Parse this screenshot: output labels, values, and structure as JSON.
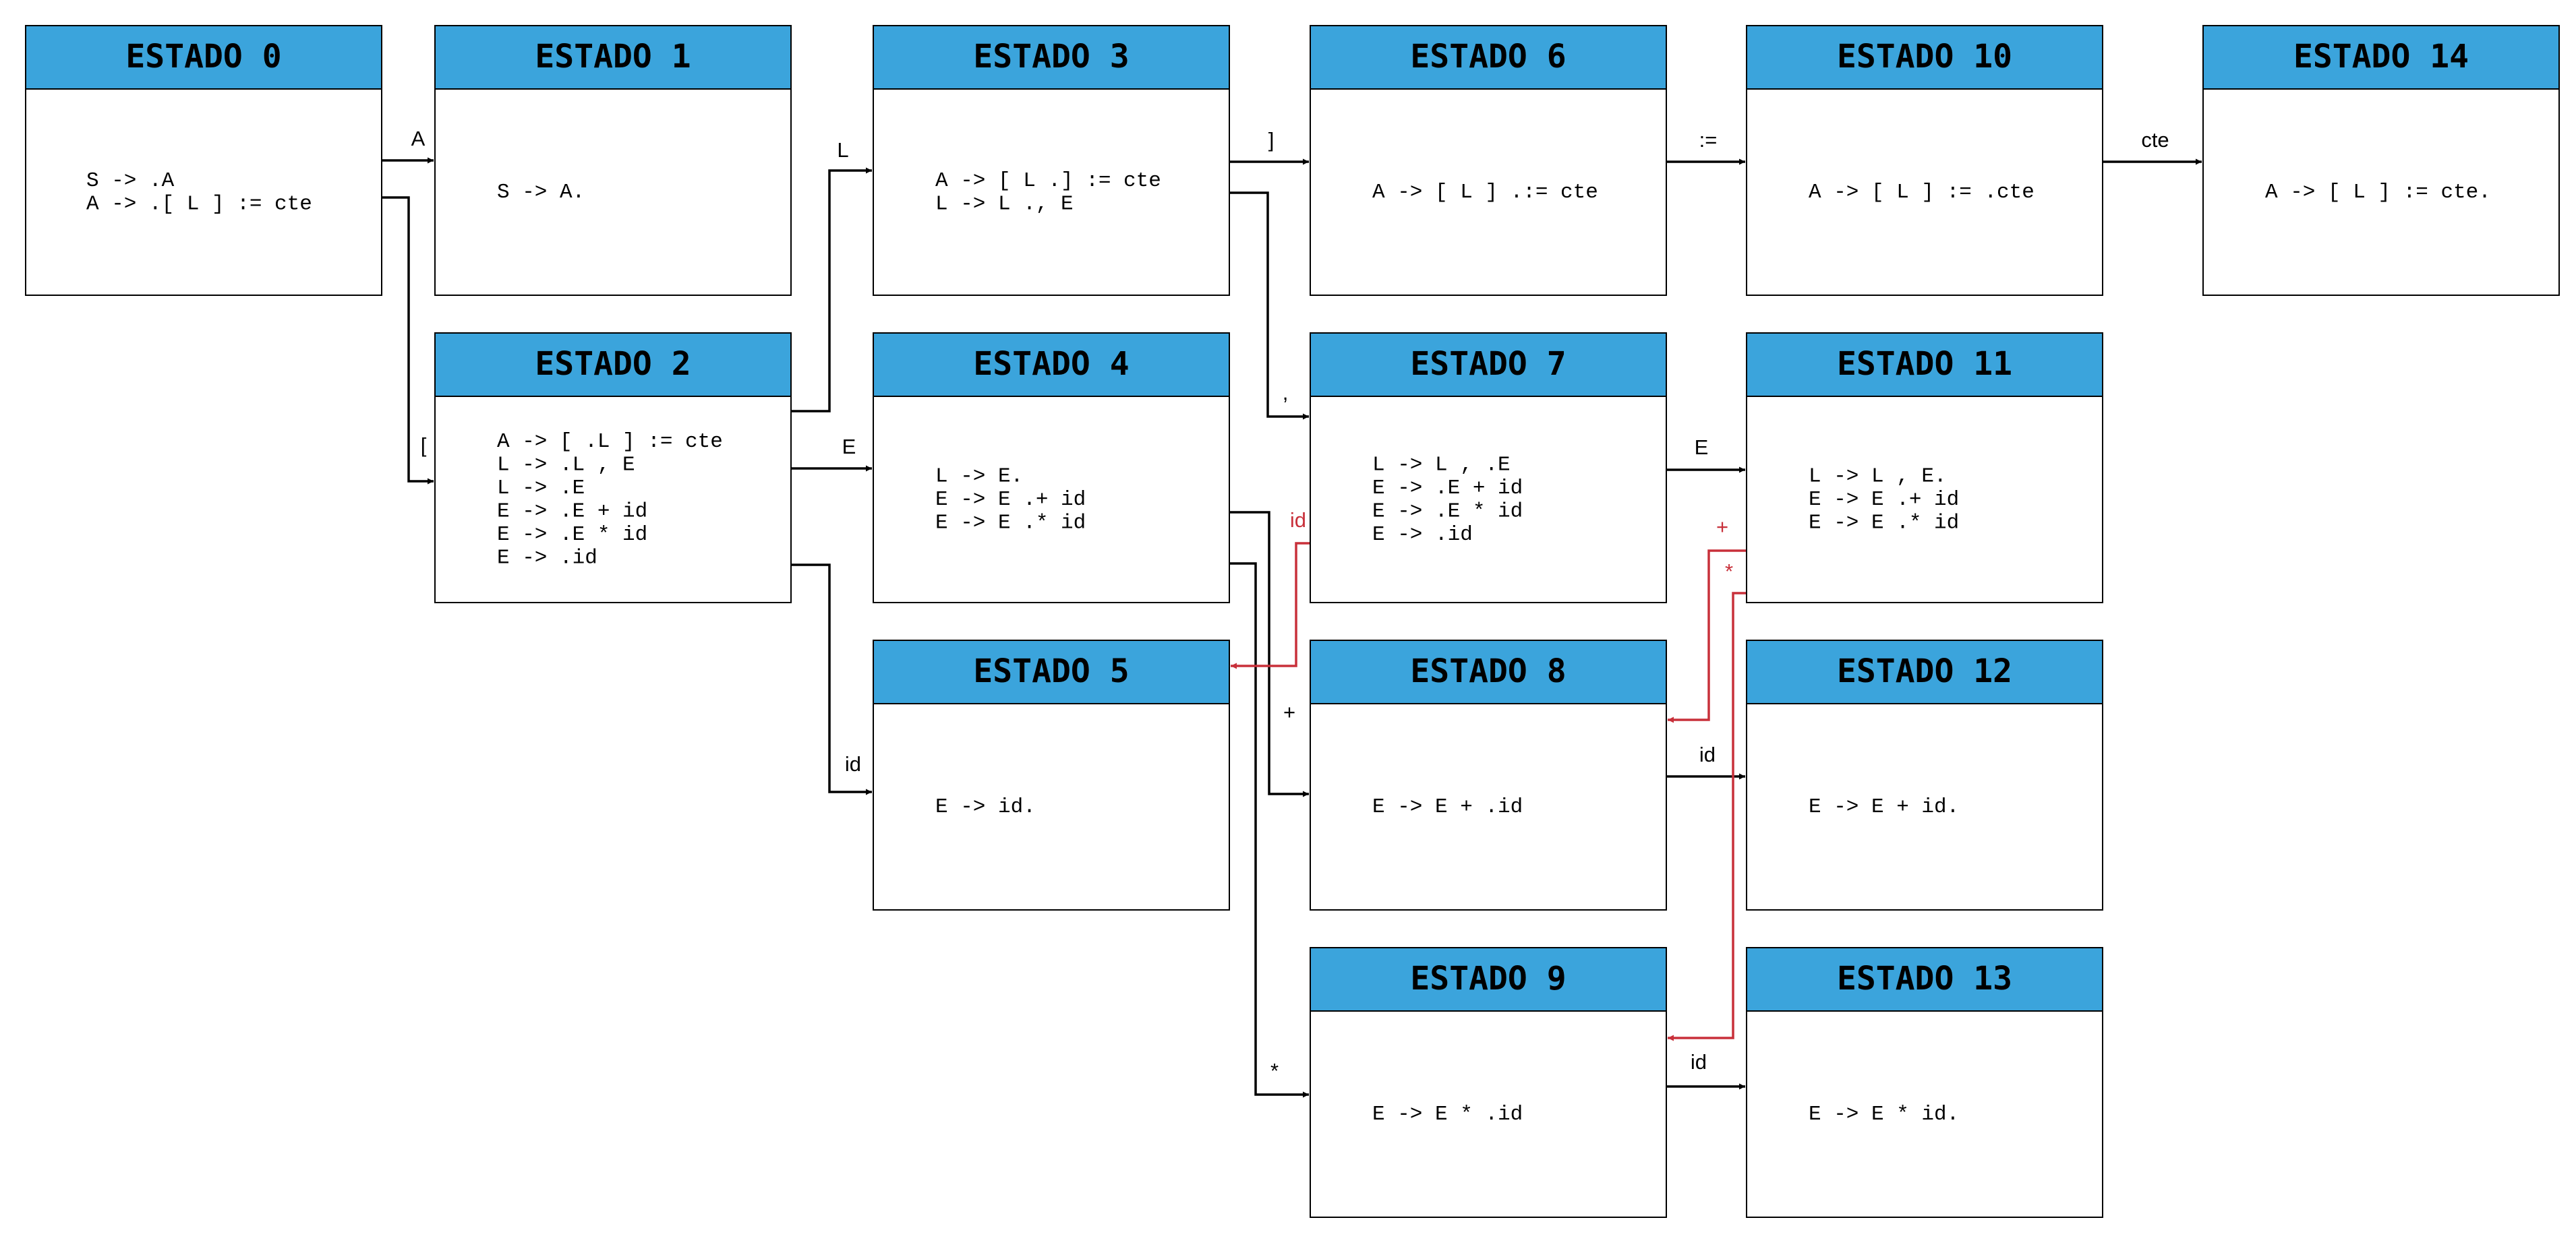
{
  "colors": {
    "header": "#3ba4dc",
    "border": "#000000",
    "edge": "#000000",
    "edge_highlight": "#c8303a"
  },
  "states": [
    {
      "id": "0",
      "title": "ESTADO 0",
      "items": [
        "S -> .A",
        "A -> .[ L ] := cte"
      ]
    },
    {
      "id": "1",
      "title": "ESTADO 1",
      "items": [
        "S -> A."
      ]
    },
    {
      "id": "2",
      "title": "ESTADO 2",
      "items": [
        "A -> [ .L ] := cte",
        "L -> .L , E",
        "L -> .E",
        "E -> .E + id",
        "E -> .E * id",
        "E -> .id"
      ]
    },
    {
      "id": "3",
      "title": "ESTADO 3",
      "items": [
        "A -> [ L .] := cte",
        "L -> L ., E"
      ]
    },
    {
      "id": "4",
      "title": "ESTADO 4",
      "items": [
        "L -> E.",
        "E -> E .+ id",
        "E -> E .* id"
      ]
    },
    {
      "id": "5",
      "title": "ESTADO 5",
      "items": [
        "E -> id."
      ]
    },
    {
      "id": "6",
      "title": "ESTADO 6",
      "items": [
        "A -> [ L ] .:= cte"
      ]
    },
    {
      "id": "7",
      "title": "ESTADO 7",
      "items": [
        "L -> L , .E",
        "E -> .E + id",
        "E -> .E * id",
        "E -> .id"
      ]
    },
    {
      "id": "8",
      "title": "ESTADO 8",
      "items": [
        "E -> E + .id"
      ]
    },
    {
      "id": "9",
      "title": "ESTADO 9",
      "items": [
        "E -> E * .id"
      ]
    },
    {
      "id": "10",
      "title": "ESTADO 10",
      "items": [
        "A -> [ L ] := .cte"
      ]
    },
    {
      "id": "11",
      "title": "ESTADO 11",
      "items": [
        "L -> L , E.",
        "E -> E .+ id",
        "E -> E .* id"
      ]
    },
    {
      "id": "12",
      "title": "ESTADO 12",
      "items": [
        "E -> E + id."
      ]
    },
    {
      "id": "13",
      "title": "ESTADO 13",
      "items": [
        "E -> E * id."
      ]
    },
    {
      "id": "14",
      "title": "ESTADO 14",
      "items": [
        "A -> [ L ] := cte."
      ]
    }
  ],
  "transitions": [
    {
      "from": "0",
      "to": "1",
      "symbol": "A"
    },
    {
      "from": "0",
      "to": "2",
      "symbol": "["
    },
    {
      "from": "2",
      "to": "3",
      "symbol": "L"
    },
    {
      "from": "2",
      "to": "4",
      "symbol": "E"
    },
    {
      "from": "2",
      "to": "5",
      "symbol": "id"
    },
    {
      "from": "3",
      "to": "6",
      "symbol": "]"
    },
    {
      "from": "3",
      "to": "7",
      "symbol": ","
    },
    {
      "from": "4",
      "to": "8",
      "symbol": "+"
    },
    {
      "from": "4",
      "to": "9",
      "symbol": "*"
    },
    {
      "from": "6",
      "to": "10",
      "symbol": ":="
    },
    {
      "from": "10",
      "to": "14",
      "symbol": "cte"
    },
    {
      "from": "7",
      "to": "11",
      "symbol": "E"
    },
    {
      "from": "7",
      "to": "5",
      "symbol": "id"
    },
    {
      "from": "8",
      "to": "12",
      "symbol": "id"
    },
    {
      "from": "9",
      "to": "13",
      "symbol": "id"
    },
    {
      "from": "11",
      "to": "8",
      "symbol": "+"
    },
    {
      "from": "11",
      "to": "9",
      "symbol": "*"
    }
  ]
}
